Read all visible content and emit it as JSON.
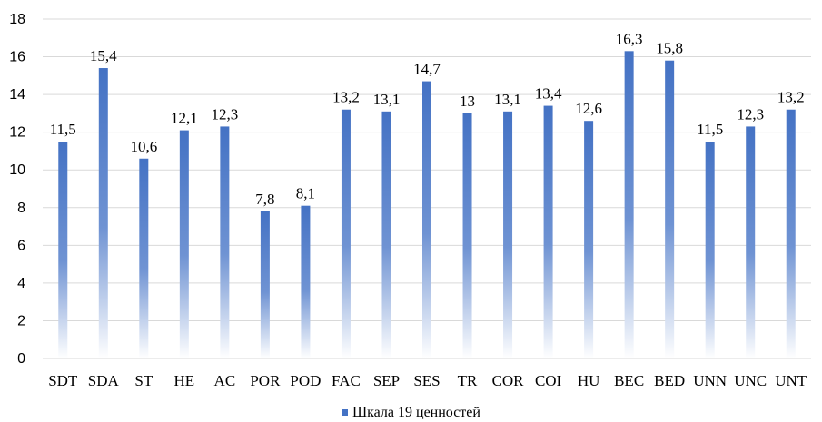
{
  "chart_data": {
    "type": "bar",
    "categories": [
      "SDT",
      "SDA",
      "ST",
      "HE",
      "AC",
      "POR",
      "POD",
      "FAC",
      "SEP",
      "SES",
      "TR",
      "COR",
      "COI",
      "HU",
      "BEC",
      "BED",
      "UNN",
      "UNC",
      "UNT"
    ],
    "series": [
      {
        "name": "Шкала 19 ценностей",
        "values": [
          11.5,
          15.4,
          10.6,
          12.1,
          12.3,
          7.8,
          8.1,
          13.2,
          13.1,
          14.7,
          13,
          13.1,
          13.4,
          12.6,
          16.3,
          15.8,
          11.5,
          12.3,
          13.2
        ],
        "labels": [
          "11,5",
          "15,4",
          "10,6",
          "12,1",
          "12,3",
          "7,8",
          "8,1",
          "13,2",
          "13,1",
          "14,7",
          "13",
          "13,1",
          "13,4",
          "12,6",
          "16,3",
          "15,8",
          "11,5",
          "12,3",
          "13,2"
        ]
      }
    ],
    "title": "",
    "xlabel": "",
    "ylabel": "",
    "ylim": [
      0,
      18
    ],
    "yticks": [
      0,
      2,
      4,
      6,
      8,
      10,
      12,
      14,
      16,
      18
    ],
    "grid": true,
    "legend_position": "bottom",
    "colors": {
      "bar_top": "#4472c4",
      "bar_bottom": "#ffffff",
      "grid": "#d9d9d9"
    }
  }
}
